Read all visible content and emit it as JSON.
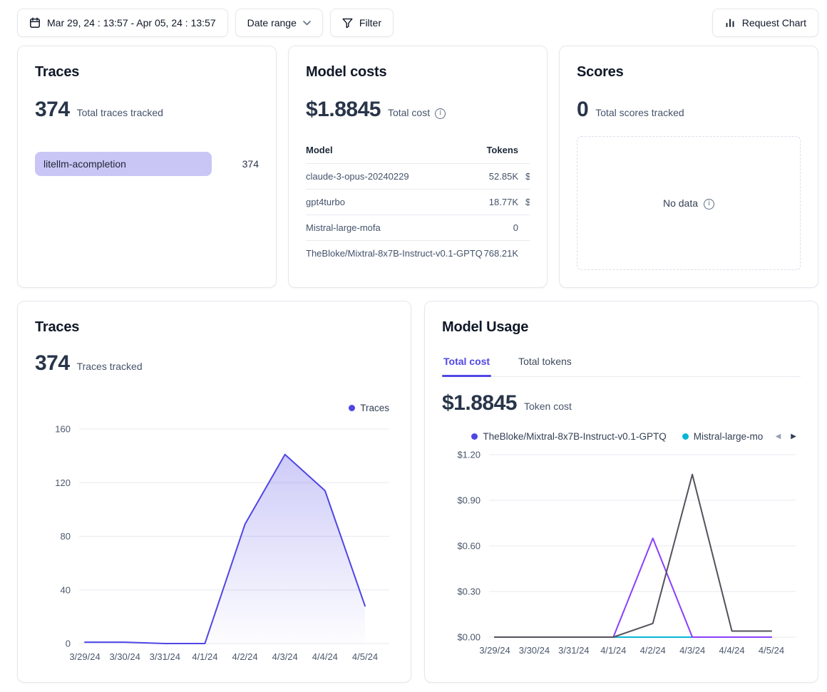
{
  "topbar": {
    "date_value": "Mar 29, 24 : 13:57 - Apr 05, 24 : 13:57",
    "date_range_label": "Date range",
    "filter_label": "Filter",
    "request_chart_label": "Request Chart"
  },
  "traces_card": {
    "title": "Traces",
    "metric": "374",
    "metric_label": "Total traces tracked",
    "rows": [
      {
        "label": "litellm-acompletion",
        "value": "374",
        "bar_color": "#c9c6f6"
      }
    ]
  },
  "model_costs_card": {
    "title": "Model costs",
    "metric": "$1.8845",
    "metric_label": "Total cost",
    "table": {
      "model_header": "Model",
      "tokens_header": "Tokens",
      "rows": [
        {
          "model": "claude-3-opus-20240229",
          "tokens": "52.85K",
          "cost_clipped": "$"
        },
        {
          "model": "gpt4turbo",
          "tokens": "18.77K",
          "cost_clipped": "$"
        },
        {
          "model": "Mistral-large-mofa",
          "tokens": "0",
          "cost_clipped": ""
        },
        {
          "model": "TheBloke/Mixtral-8x7B-Instruct-v0.1-GPTQ",
          "tokens": "768.21K",
          "cost_clipped": ""
        }
      ]
    }
  },
  "scores_card": {
    "title": "Scores",
    "metric": "0",
    "metric_label": "Total scores tracked",
    "no_data_label": "No data"
  },
  "traces_chart_card": {
    "title": "Traces",
    "metric": "374",
    "metric_label": "Traces tracked",
    "legend": [
      {
        "label": "Traces",
        "color": "#4f46e5"
      }
    ]
  },
  "model_usage_card": {
    "title": "Model Usage",
    "tabs": [
      {
        "label": "Total cost",
        "active": true
      },
      {
        "label": "Total tokens",
        "active": false
      }
    ],
    "metric": "$1.8845",
    "metric_label": "Token cost",
    "legend": [
      {
        "label": "TheBloke/Mixtral-8x7B-Instruct-v0.1-GPTQ",
        "color": "#4f46e5",
        "truncated": false
      },
      {
        "label": "Mistral-large-mo",
        "color": "#06b6d4",
        "truncated": true
      }
    ]
  },
  "chart_data": [
    {
      "id": "traces-over-time",
      "type": "area",
      "title": "Traces",
      "categories": [
        "3/29/24",
        "3/30/24",
        "3/31/24",
        "4/1/24",
        "4/2/24",
        "4/3/24",
        "4/4/24",
        "4/5/24"
      ],
      "series": [
        {
          "name": "Traces",
          "color": "#4f46e5",
          "fill": true,
          "values": [
            1,
            1,
            0,
            0,
            89,
            141,
            114,
            28
          ]
        }
      ],
      "xlabel": "",
      "ylabel": "",
      "ylim": [
        0,
        160
      ],
      "yticks": [
        0,
        40,
        80,
        120,
        160
      ],
      "ytick_labels": [
        "0",
        "40",
        "80",
        "120",
        "160"
      ],
      "grid": true,
      "legend_position": "top-right"
    },
    {
      "id": "model-usage-total-cost",
      "type": "line",
      "title": "Token cost",
      "categories": [
        "3/29/24",
        "3/30/24",
        "3/31/24",
        "4/1/24",
        "4/2/24",
        "4/3/24",
        "4/4/24",
        "4/5/24"
      ],
      "series": [
        {
          "name": "TheBloke/Mixtral-8x7B-Instruct-v0.1-GPTQ",
          "color": "#4f46e5",
          "fill": false,
          "values": [
            0,
            0,
            0,
            0,
            0,
            0,
            0,
            0
          ]
        },
        {
          "name": "Mistral-large-mo",
          "color": "#06b6d4",
          "fill": false,
          "values": [
            0,
            0,
            0,
            0,
            0,
            0,
            0,
            0
          ]
        },
        {
          "name": "",
          "color": "#8a3ffc",
          "fill": false,
          "values": [
            0,
            0,
            0,
            0,
            0.65,
            0,
            0,
            0
          ]
        },
        {
          "name": "",
          "color": "#52525b",
          "fill": false,
          "values": [
            0,
            0,
            0,
            0,
            0.09,
            1.07,
            0.04,
            0.04
          ]
        }
      ],
      "xlabel": "",
      "ylabel": "",
      "ylim": [
        0,
        1.2
      ],
      "yticks": [
        0,
        0.3,
        0.6,
        0.9,
        1.2
      ],
      "ytick_labels": [
        "$0.00",
        "$0.30",
        "$0.60",
        "$0.90",
        "$1.20"
      ],
      "grid": true,
      "legend_position": "top-center"
    }
  ]
}
